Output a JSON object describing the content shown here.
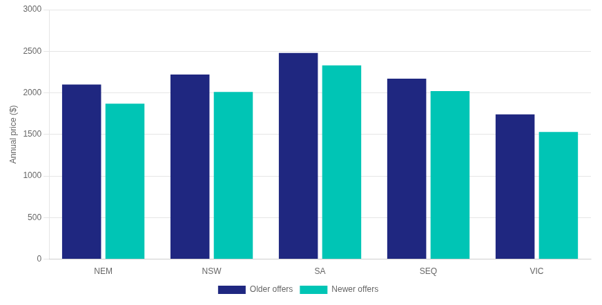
{
  "chart_data": {
    "type": "bar",
    "ylabel": "Annual price ($)",
    "categories": [
      "NEM",
      "NSW",
      "SA",
      "SEQ",
      "VIC"
    ],
    "series": [
      {
        "name": "Older offers",
        "color": "#1f2780",
        "values": [
          2100,
          2220,
          2480,
          2170,
          1740
        ]
      },
      {
        "name": "Newer offers",
        "color": "#00c5b5",
        "values": [
          1870,
          2010,
          2330,
          2020,
          1530
        ]
      }
    ],
    "ylim": [
      0,
      3000
    ],
    "yticks": [
      0,
      500,
      1000,
      1500,
      2000,
      2500,
      3000
    ],
    "grid": true,
    "legend": "bottom"
  }
}
